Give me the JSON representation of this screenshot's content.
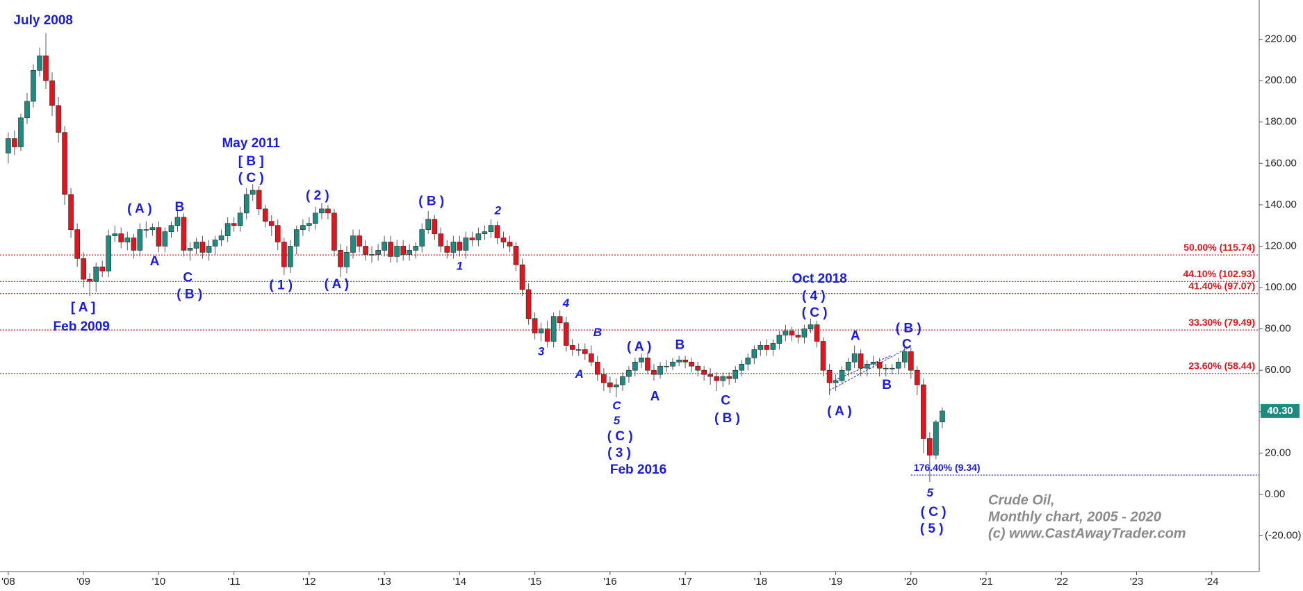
{
  "chart_data": {
    "type": "candlestick",
    "x": [
      2008,
      2008.083,
      2008.167,
      2008.25,
      2008.333,
      2008.417,
      2008.5,
      2008.583,
      2008.667,
      2008.75,
      2008.833,
      2008.917,
      2009,
      2009.083,
      2009.167,
      2009.25,
      2009.333,
      2009.417,
      2009.5,
      2009.583,
      2009.667,
      2009.75,
      2009.833,
      2009.917,
      2010,
      2010.083,
      2010.167,
      2010.25,
      2010.333,
      2010.417,
      2010.5,
      2010.583,
      2010.667,
      2010.75,
      2010.833,
      2010.917,
      2011,
      2011.083,
      2011.167,
      2011.25,
      2011.333,
      2011.417,
      2011.5,
      2011.583,
      2011.667,
      2011.75,
      2011.833,
      2011.917,
      2012,
      2012.083,
      2012.167,
      2012.25,
      2012.333,
      2012.417,
      2012.5,
      2012.583,
      2012.667,
      2012.75,
      2012.833,
      2012.917,
      2013,
      2013.083,
      2013.167,
      2013.25,
      2013.333,
      2013.417,
      2013.5,
      2013.583,
      2013.667,
      2013.75,
      2013.833,
      2013.917,
      2014,
      2014.083,
      2014.167,
      2014.25,
      2014.333,
      2014.417,
      2014.5,
      2014.583,
      2014.667,
      2014.75,
      2014.833,
      2014.917,
      2015,
      2015.083,
      2015.167,
      2015.25,
      2015.333,
      2015.417,
      2015.5,
      2015.583,
      2015.667,
      2015.75,
      2015.833,
      2015.917,
      2016,
      2016.083,
      2016.167,
      2016.25,
      2016.333,
      2016.417,
      2016.5,
      2016.583,
      2016.667,
      2016.75,
      2016.833,
      2016.917,
      2017,
      2017.083,
      2017.167,
      2017.25,
      2017.333,
      2017.417,
      2017.5,
      2017.583,
      2017.667,
      2017.75,
      2017.833,
      2017.917,
      2018,
      2018.083,
      2018.167,
      2018.25,
      2018.333,
      2018.417,
      2018.5,
      2018.583,
      2018.667,
      2018.75,
      2018.833,
      2018.917,
      2019,
      2019.083,
      2019.167,
      2019.25,
      2019.333,
      2019.417,
      2019.5,
      2019.583,
      2019.667,
      2019.75,
      2019.833,
      2019.917,
      2020,
      2020.083,
      2020.167,
      2020.25,
      2020.333,
      2020.417
    ],
    "open": [
      165,
      172,
      168,
      182,
      190,
      205,
      212,
      200,
      188,
      175,
      145,
      128,
      114,
      104,
      103,
      110,
      108,
      125,
      126,
      122,
      124,
      118,
      128,
      128,
      129,
      120,
      127,
      130,
      134,
      118,
      119,
      122,
      117,
      120,
      123,
      125,
      131,
      130,
      136,
      145,
      147,
      138,
      132,
      130,
      122,
      110,
      120,
      128,
      130,
      131,
      136,
      138,
      136,
      118,
      110,
      117,
      125,
      120,
      116,
      116,
      118,
      122,
      115,
      120,
      116,
      118,
      120,
      128,
      133,
      126,
      120,
      117,
      122,
      118,
      124,
      123,
      126,
      127,
      130,
      124,
      122,
      120,
      111,
      99,
      85,
      78,
      80,
      74,
      86,
      83,
      72,
      70,
      70,
      68,
      64,
      58,
      54,
      52,
      53,
      57,
      60,
      64,
      66,
      60,
      58,
      62,
      62,
      64,
      65,
      64,
      62,
      60,
      58,
      57,
      55,
      57,
      56,
      60,
      63,
      66,
      70,
      72,
      70,
      73,
      77,
      79,
      77,
      76,
      80,
      82,
      74,
      60,
      54,
      55,
      60,
      64,
      68,
      61,
      63,
      64,
      61,
      61,
      61,
      64,
      69,
      60,
      53,
      27,
      19,
      35
    ],
    "high": [
      175,
      176,
      184,
      194,
      208,
      216,
      223,
      204,
      192,
      178,
      148,
      131,
      117,
      107,
      112,
      113,
      128,
      130,
      129,
      127,
      126,
      131,
      132,
      131,
      132,
      129,
      132,
      137,
      136,
      122,
      124,
      125,
      123,
      125,
      128,
      134,
      134,
      139,
      148,
      150,
      149,
      140,
      135,
      133,
      124,
      123,
      130,
      133,
      134,
      139,
      141,
      140,
      138,
      121,
      120,
      128,
      128,
      123,
      120,
      121,
      125,
      125,
      123,
      123,
      121,
      122,
      131,
      137,
      135,
      129,
      123,
      125,
      125,
      127,
      127,
      129,
      130,
      133,
      132,
      127,
      125,
      122,
      114,
      102,
      88,
      83,
      84,
      88,
      89,
      86,
      75,
      73,
      73,
      72,
      67,
      61,
      57,
      56,
      59,
      62,
      66,
      68,
      68,
      63,
      64,
      65,
      66,
      67,
      67,
      66,
      64,
      62,
      61,
      59,
      59,
      59,
      62,
      65,
      68,
      72,
      74,
      75,
      75,
      79,
      82,
      81,
      80,
      82,
      85,
      84,
      76,
      63,
      58,
      62,
      66,
      72,
      70,
      65,
      67,
      66,
      63,
      63,
      66,
      71,
      71,
      62,
      56,
      30,
      36,
      42
    ],
    "low": [
      160,
      164,
      166,
      179,
      187,
      202,
      196,
      183,
      170,
      140,
      124,
      110,
      100,
      96,
      98,
      105,
      105,
      122,
      119,
      118,
      114,
      115,
      124,
      125,
      117,
      117,
      124,
      127,
      115,
      113,
      116,
      114,
      113,
      116,
      120,
      122,
      127,
      127,
      133,
      142,
      135,
      129,
      125,
      118,
      106,
      107,
      116,
      125,
      127,
      128,
      133,
      133,
      115,
      105,
      107,
      114,
      117,
      113,
      112,
      113,
      115,
      112,
      112,
      113,
      113,
      114,
      117,
      126,
      123,
      117,
      114,
      114,
      115,
      114,
      120,
      120,
      123,
      124,
      121,
      119,
      117,
      108,
      96,
      82,
      75,
      74,
      71,
      71,
      80,
      69,
      67,
      67,
      65,
      62,
      55,
      50,
      49,
      47,
      50,
      54,
      57,
      61,
      58,
      55,
      56,
      59,
      60,
      62,
      61,
      59,
      57,
      55,
      53,
      50,
      52,
      53,
      54,
      57,
      60,
      63,
      67,
      67,
      67,
      70,
      74,
      74,
      73,
      73,
      78,
      71,
      57,
      48,
      50,
      53,
      57,
      61,
      57,
      57,
      61,
      57,
      57,
      58,
      58,
      61,
      56,
      48,
      20,
      6,
      17,
      32
    ],
    "close": [
      172,
      168,
      182,
      190,
      205,
      212,
      200,
      188,
      175,
      145,
      128,
      114,
      104,
      103,
      110,
      108,
      125,
      126,
      122,
      124,
      118,
      128,
      128,
      129,
      120,
      127,
      130,
      134,
      118,
      119,
      122,
      117,
      120,
      123,
      125,
      131,
      130,
      136,
      145,
      147,
      138,
      132,
      130,
      122,
      110,
      120,
      128,
      130,
      131,
      136,
      138,
      136,
      118,
      110,
      117,
      125,
      120,
      116,
      116,
      118,
      122,
      115,
      120,
      116,
      118,
      120,
      128,
      133,
      126,
      120,
      117,
      122,
      118,
      124,
      123,
      126,
      127,
      130,
      124,
      122,
      120,
      111,
      99,
      85,
      78,
      80,
      74,
      86,
      83,
      72,
      70,
      70,
      68,
      64,
      58,
      54,
      52,
      53,
      57,
      60,
      64,
      66,
      60,
      58,
      62,
      62,
      64,
      65,
      64,
      62,
      60,
      58,
      57,
      55,
      57,
      56,
      60,
      63,
      66,
      70,
      72,
      70,
      73,
      77,
      79,
      77,
      76,
      80,
      82,
      74,
      60,
      54,
      55,
      60,
      64,
      68,
      61,
      63,
      64,
      61,
      61,
      61,
      64,
      69,
      60,
      53,
      27,
      19,
      35,
      40.3
    ],
    "up_color": "#1f8a7e",
    "down_color": "#e3141b",
    "last_label": "40.30",
    "xlim": [
      2007.89,
      2024.63
    ],
    "xticks": [
      {
        "value": 2008,
        "label": "'08"
      },
      {
        "value": 2009,
        "label": "'09"
      },
      {
        "value": 2010,
        "label": "'10"
      },
      {
        "value": 2011,
        "label": "'11"
      },
      {
        "value": 2012,
        "label": "'12"
      },
      {
        "value": 2013,
        "label": "'13"
      },
      {
        "value": 2014,
        "label": "'14"
      },
      {
        "value": 2015,
        "label": "'15"
      },
      {
        "value": 2016,
        "label": "'16"
      },
      {
        "value": 2017,
        "label": "'17"
      },
      {
        "value": 2018,
        "label": "'18"
      },
      {
        "value": 2019,
        "label": "'19"
      },
      {
        "value": 2020,
        "label": "'20"
      },
      {
        "value": 2021,
        "label": "'21"
      },
      {
        "value": 2022,
        "label": "'22"
      },
      {
        "value": 2023,
        "label": "'23"
      },
      {
        "value": 2024,
        "label": "'24"
      }
    ],
    "ylim": [
      -37.3,
      239
    ],
    "yticks": [
      {
        "value": -20,
        "label": "(-20.00)"
      },
      {
        "value": 0,
        "label": "0.00"
      },
      {
        "value": 20,
        "label": "20.00"
      },
      {
        "value": 40,
        "label": "40.00"
      },
      {
        "value": 60,
        "label": "60.00"
      },
      {
        "value": 80,
        "label": "80.00"
      },
      {
        "value": 100,
        "label": "100.00"
      },
      {
        "value": 120,
        "label": "120.00"
      },
      {
        "value": 140,
        "label": "140.00"
      },
      {
        "value": 160,
        "label": "160.00"
      },
      {
        "value": 180,
        "label": "180.00"
      },
      {
        "value": 200,
        "label": "200.00"
      },
      {
        "value": 220,
        "label": "220.00"
      }
    ],
    "reference_lines": [
      {
        "value": 115.74,
        "label": "50.00% (115.74)",
        "color": "#e3141b"
      },
      {
        "value": 102.93,
        "label": "44.10% (102.93)",
        "color": "#e3141b"
      },
      {
        "value": 97.07,
        "label": "41.40% (97.07)",
        "color": "#e3141b"
      },
      {
        "value": 79.49,
        "label": "33.30% (79.49)",
        "color": "#e3141b"
      },
      {
        "value": 58.44,
        "label": "23.60% (58.44)",
        "color": "#e3141b"
      },
      {
        "value": 9.34,
        "label": "176.40% (9.34)",
        "color": "#1a1ae6"
      }
    ],
    "annotations": [
      "July 2008",
      "( A )",
      "B",
      "A",
      "C",
      "( B )",
      "[ A ]",
      "Feb 2009",
      "May 2011",
      "[ B ]",
      "( C )",
      "( 2 )",
      "( 1 )",
      "( A )",
      "( B )",
      "2",
      "1",
      "4",
      "3",
      "B",
      "A",
      "( A )",
      "B",
      "A",
      "C",
      "5",
      "( C )",
      "( 3 )",
      "Feb 2016",
      "C",
      "( B )",
      "Oct 2018",
      "( 4 )",
      "( C )",
      "A",
      "( A )",
      "B",
      "( B )",
      "C",
      "5",
      "( C )",
      "( 5 )"
    ],
    "notes": [
      "Crude Oil,",
      "Monthly chart, 2005 - 2020",
      "(c) www.CastAwayTrader.com"
    ]
  }
}
